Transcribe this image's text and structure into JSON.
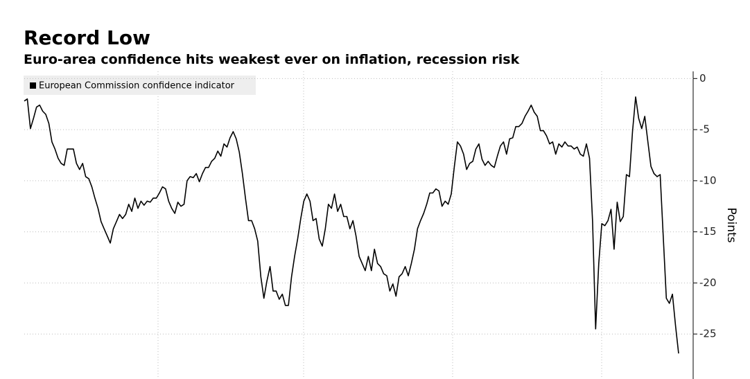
{
  "chart_data": {
    "type": "line",
    "title": "Record Low",
    "subtitle": "Euro-area confidence hits weakest ever on inflation, recession risk",
    "y_label": "Points",
    "series": [
      {
        "name": "European Commission confidence indicator",
        "color": "#000000",
        "values": [
          -2.2,
          -2.0,
          -4.9,
          -3.9,
          -2.8,
          -2.6,
          -3.2,
          -3.5,
          -4.4,
          -6.2,
          -6.9,
          -7.8,
          -8.3,
          -8.5,
          -6.9,
          -6.9,
          -6.9,
          -8.3,
          -8.9,
          -8.3,
          -9.6,
          -9.8,
          -10.6,
          -11.7,
          -12.7,
          -14.0,
          -14.7,
          -15.4,
          -16.1,
          -14.7,
          -14.0,
          -13.3,
          -13.7,
          -13.3,
          -12.3,
          -13.0,
          -11.7,
          -12.7,
          -12.0,
          -12.4,
          -12.0,
          -12.1,
          -11.7,
          -11.7,
          -11.2,
          -10.6,
          -10.8,
          -12.0,
          -12.7,
          -13.2,
          -12.1,
          -12.5,
          -12.3,
          -10.0,
          -9.6,
          -9.7,
          -9.3,
          -10.1,
          -9.3,
          -8.7,
          -8.7,
          -8.1,
          -7.8,
          -7.1,
          -7.6,
          -6.4,
          -6.7,
          -5.8,
          -5.2,
          -5.9,
          -7.2,
          -9.3,
          -11.7,
          -13.9,
          -13.9,
          -14.7,
          -15.9,
          -19.4,
          -21.5,
          -19.8,
          -18.4,
          -20.8,
          -20.8,
          -21.6,
          -21.1,
          -22.2,
          -22.2,
          -19.4,
          -17.4,
          -15.7,
          -13.7,
          -12.0,
          -11.3,
          -12.0,
          -13.9,
          -13.7,
          -15.7,
          -16.4,
          -14.7,
          -12.3,
          -12.7,
          -11.3,
          -13.0,
          -12.3,
          -13.5,
          -13.5,
          -14.7,
          -13.9,
          -15.4,
          -17.4,
          -18.1,
          -18.8,
          -17.4,
          -18.8,
          -16.7,
          -18.1,
          -18.4,
          -19.1,
          -19.3,
          -20.8,
          -20.1,
          -21.3,
          -19.4,
          -19.1,
          -18.4,
          -19.3,
          -18.1,
          -16.7,
          -14.7,
          -13.9,
          -13.2,
          -12.3,
          -11.2,
          -11.2,
          -10.8,
          -11.0,
          -12.5,
          -12.0,
          -12.3,
          -11.3,
          -8.6,
          -6.2,
          -6.6,
          -7.4,
          -8.9,
          -8.3,
          -8.1,
          -6.9,
          -6.4,
          -7.9,
          -8.5,
          -8.1,
          -8.5,
          -8.7,
          -7.6,
          -6.6,
          -6.2,
          -7.4,
          -5.9,
          -5.8,
          -4.7,
          -4.7,
          -4.4,
          -3.7,
          -3.2,
          -2.6,
          -3.3,
          -3.7,
          -5.1,
          -5.1,
          -5.6,
          -6.4,
          -6.2,
          -7.4,
          -6.4,
          -6.7,
          -6.2,
          -6.6,
          -6.6,
          -6.9,
          -6.7,
          -7.4,
          -7.6,
          -6.4,
          -7.8,
          -14.0,
          -24.5,
          -18.1,
          -14.2,
          -14.4,
          -13.9,
          -12.8,
          -16.7,
          -12.1,
          -14.0,
          -13.5,
          -9.4,
          -9.6,
          -5.2,
          -1.8,
          -3.9,
          -4.9,
          -3.7,
          -6.2,
          -8.6,
          -9.3,
          -9.6,
          -9.4,
          -15.4,
          -21.5,
          -22.0,
          -21.1,
          -24.2,
          -26.9
        ]
      }
    ],
    "ylim": [
      -29.4,
      0.7
    ],
    "yticks": [
      0,
      -5,
      -10,
      -15,
      -20,
      -25
    ],
    "grid": true
  }
}
